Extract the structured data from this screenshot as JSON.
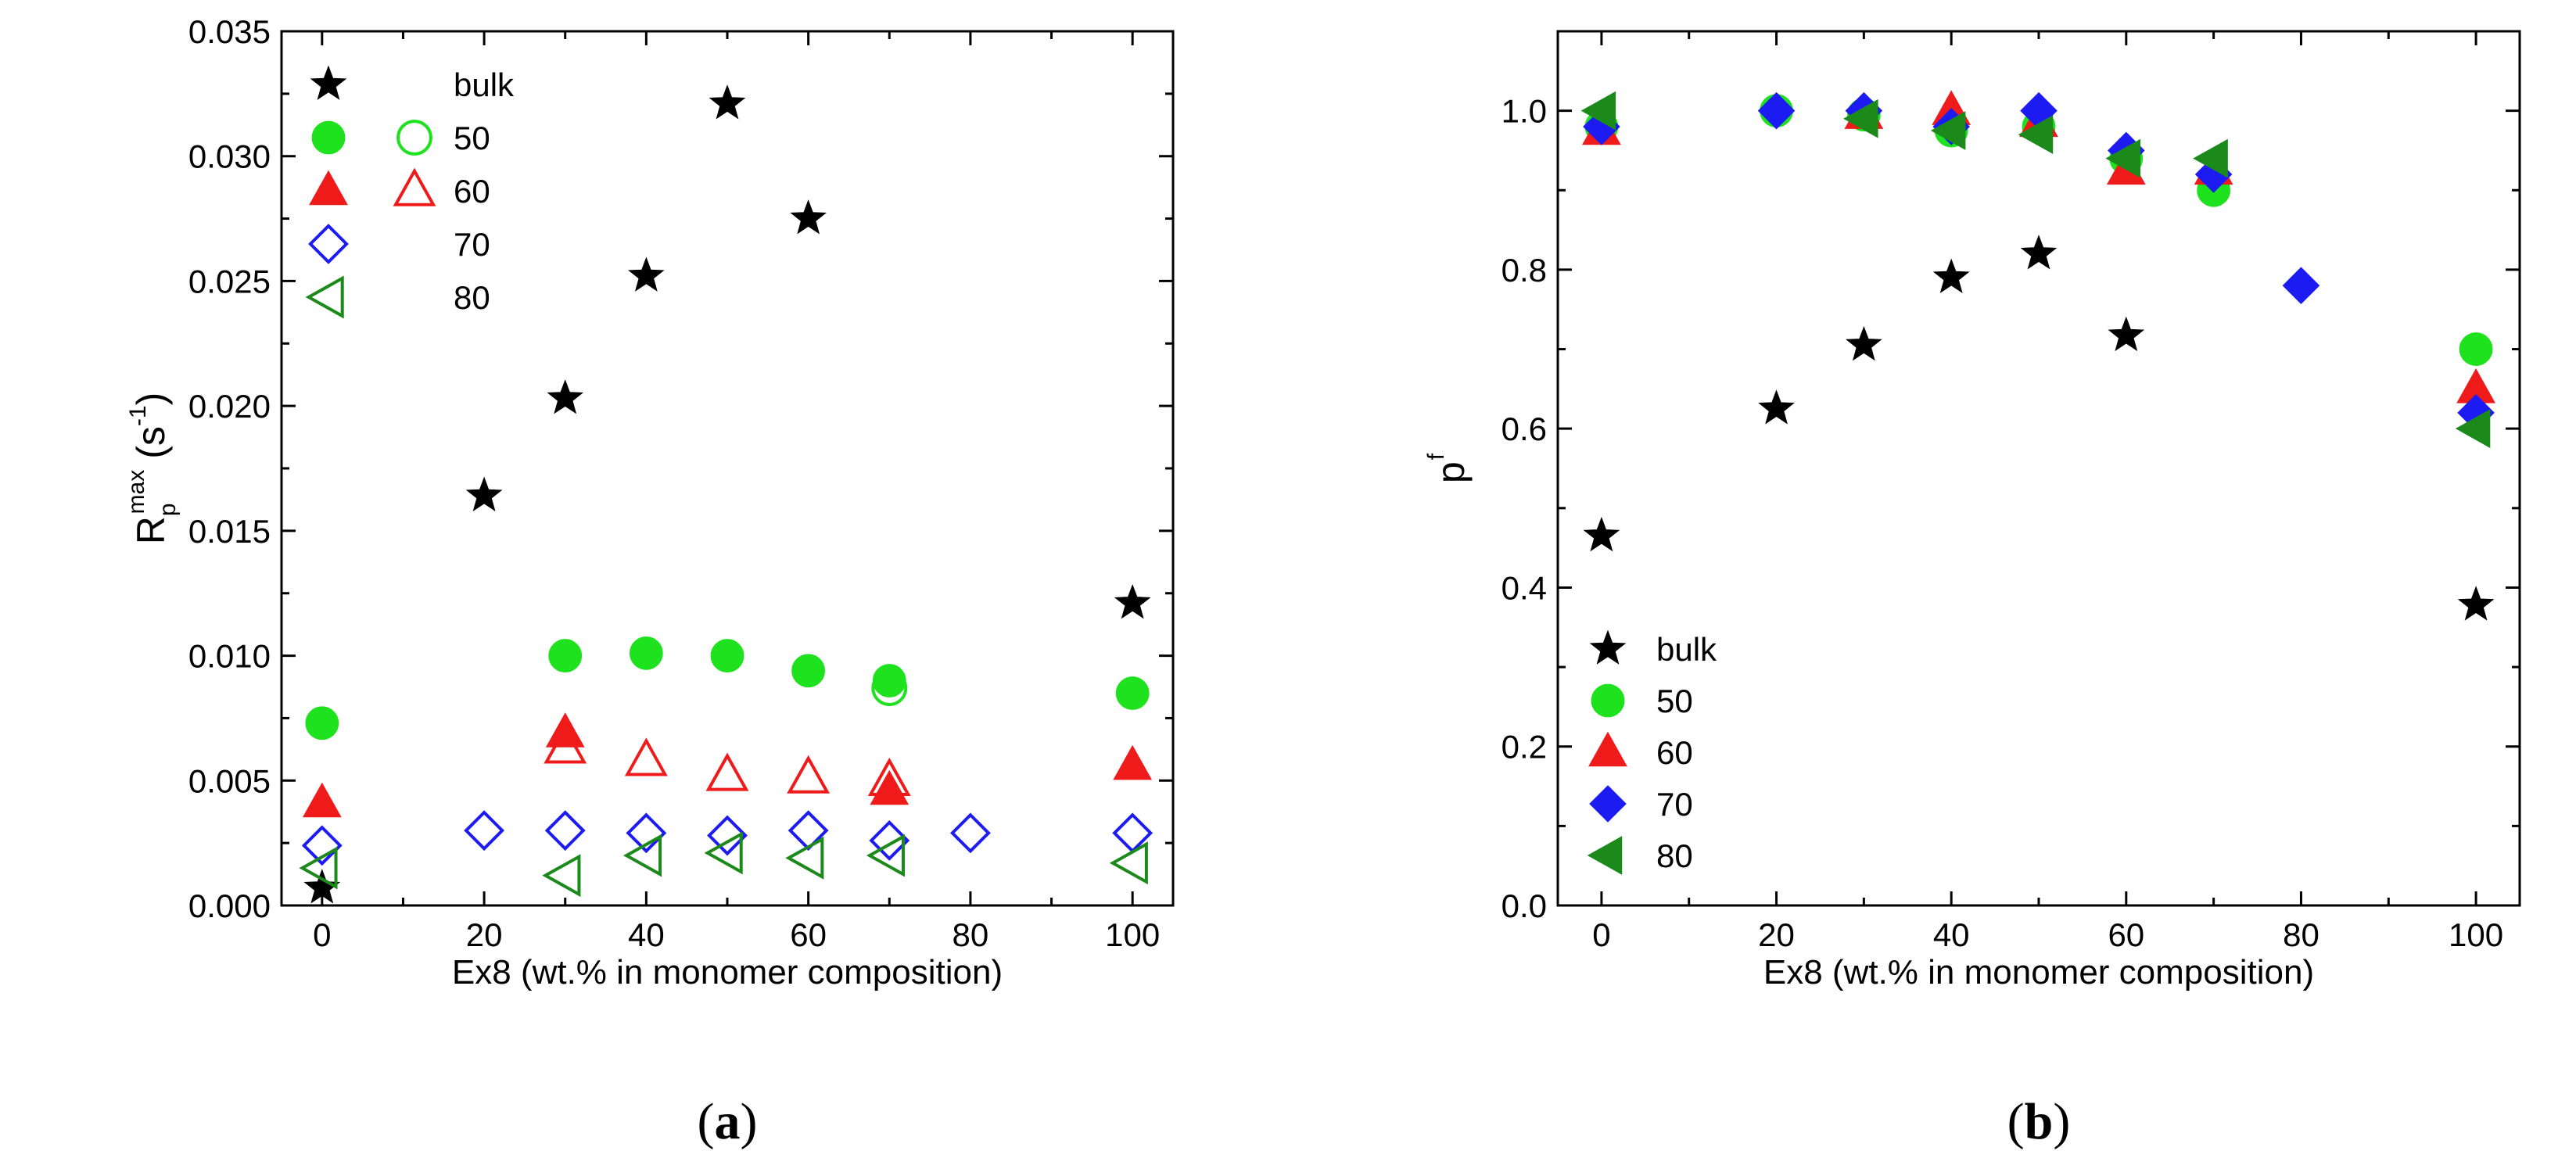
{
  "colors": {
    "bulk": "#000000",
    "50": "#1fe21f",
    "60": "#ef1b1b",
    "70": "#1c1cf2",
    "80": "#1b8a1b",
    "axis": "#000000"
  },
  "chart_data": [
    {
      "id": "a",
      "type": "scatter",
      "panel_label": "a",
      "xlabel": "Ex8 (wt.% in monomer composition)",
      "ylabel": "R",
      "ylabel_sup": "max",
      "ylabel_sub": "p",
      "ylabel_unit_open": "(s",
      "ylabel_unit_sup": "-1",
      "ylabel_unit_close": ")",
      "xlim": [
        -5,
        105
      ],
      "ylim": [
        0,
        0.035
      ],
      "xticks": [
        0,
        20,
        40,
        60,
        80,
        100
      ],
      "xtick_labels": [
        "0",
        "20",
        "40",
        "60",
        "80",
        "100"
      ],
      "yticks": [
        0,
        0.005,
        0.01,
        0.015,
        0.02,
        0.025,
        0.03,
        0.035
      ],
      "ytick_labels": [
        "0.000",
        "0.005",
        "0.010",
        "0.015",
        "0.020",
        "0.025",
        "0.030",
        "0.035"
      ],
      "legend": {
        "position": "top-left",
        "rows": [
          {
            "label": "bulk",
            "markers": [
              {
                "series": "bulk",
                "marker": "star",
                "filled": true
              }
            ]
          },
          {
            "label": "50",
            "markers": [
              {
                "series": "50",
                "marker": "circle",
                "filled": true
              },
              {
                "series": "50",
                "marker": "circle",
                "filled": false
              }
            ]
          },
          {
            "label": "60",
            "markers": [
              {
                "series": "60",
                "marker": "triangle-up",
                "filled": true
              },
              {
                "series": "60",
                "marker": "triangle-up",
                "filled": false
              }
            ]
          },
          {
            "label": "70",
            "markers": [
              {
                "series": "70",
                "marker": "diamond",
                "filled": false
              }
            ]
          },
          {
            "label": "80",
            "markers": [
              {
                "series": "80",
                "marker": "triangle-left",
                "filled": false
              }
            ]
          }
        ]
      },
      "series": [
        {
          "name": "bulk",
          "marker": "star",
          "filled": true,
          "x": [
            0,
            20,
            30,
            40,
            50,
            60,
            100
          ],
          "y": [
            0.0007,
            0.0164,
            0.0203,
            0.0252,
            0.0321,
            0.0275,
            0.0121
          ]
        },
        {
          "name": "50",
          "marker": "circle",
          "filled": true,
          "x": [
            0,
            30,
            40,
            50,
            60,
            70,
            100
          ],
          "y": [
            0.0073,
            0.01,
            0.0101,
            0.01,
            0.0094,
            0.009,
            0.0085
          ]
        },
        {
          "name": "50",
          "marker": "circle",
          "filled": false,
          "x": [
            70
          ],
          "y": [
            0.0087
          ]
        },
        {
          "name": "60",
          "marker": "triangle-up",
          "filled": true,
          "x": [
            0,
            30,
            70,
            100
          ],
          "y": [
            0.0041,
            0.0069,
            0.0046,
            0.0056
          ]
        },
        {
          "name": "60",
          "marker": "triangle-up",
          "filled": false,
          "x": [
            30,
            40,
            50,
            60,
            70
          ],
          "y": [
            0.0063,
            0.0058,
            0.0052,
            0.0051,
            0.005
          ]
        },
        {
          "name": "70",
          "marker": "diamond",
          "filled": false,
          "x": [
            0,
            20,
            30,
            40,
            50,
            60,
            70,
            80,
            100
          ],
          "y": [
            0.0024,
            0.003,
            0.003,
            0.0029,
            0.0028,
            0.003,
            0.0026,
            0.0029,
            0.0029
          ]
        },
        {
          "name": "80",
          "marker": "triangle-left",
          "filled": false,
          "x": [
            0,
            30,
            40,
            50,
            60,
            70,
            100
          ],
          "y": [
            0.0015,
            0.0012,
            0.002,
            0.0021,
            0.0019,
            0.002,
            0.0017
          ]
        }
      ]
    },
    {
      "id": "b",
      "type": "scatter",
      "panel_label": "b",
      "xlabel": "Ex8 (wt.% in monomer composition)",
      "ylabel": "p",
      "ylabel_sup": "f",
      "xlim": [
        -5,
        105
      ],
      "ylim": [
        0,
        1.1
      ],
      "xticks": [
        0,
        20,
        40,
        60,
        80,
        100
      ],
      "xtick_labels": [
        "0",
        "20",
        "40",
        "60",
        "80",
        "100"
      ],
      "yticks": [
        0,
        0.2,
        0.4,
        0.6,
        0.8,
        1.0
      ],
      "ytick_labels": [
        "0.0",
        "0.2",
        "0.4",
        "0.6",
        "0.8",
        "1.0"
      ],
      "legend": {
        "position": "bottom-left",
        "rows": [
          {
            "label": "bulk",
            "markers": [
              {
                "series": "bulk",
                "marker": "star",
                "filled": true
              }
            ]
          },
          {
            "label": "50",
            "markers": [
              {
                "series": "50",
                "marker": "circle",
                "filled": true
              }
            ]
          },
          {
            "label": "60",
            "markers": [
              {
                "series": "60",
                "marker": "triangle-up",
                "filled": true
              }
            ]
          },
          {
            "label": "70",
            "markers": [
              {
                "series": "70",
                "marker": "diamond",
                "filled": true
              }
            ]
          },
          {
            "label": "80",
            "markers": [
              {
                "series": "80",
                "marker": "triangle-left",
                "filled": true
              }
            ]
          }
        ]
      },
      "series": [
        {
          "name": "bulk",
          "marker": "star",
          "filled": true,
          "x": [
            0,
            20,
            30,
            40,
            50,
            60,
            100
          ],
          "y": [
            0.465,
            0.625,
            0.705,
            0.79,
            0.82,
            0.717,
            0.378
          ]
        },
        {
          "name": "50",
          "marker": "circle",
          "filled": true,
          "x": [
            0,
            20,
            30,
            40,
            50,
            60,
            70,
            100
          ],
          "y": [
            0.98,
            1.0,
            0.995,
            0.975,
            0.98,
            0.94,
            0.9,
            0.7
          ]
        },
        {
          "name": "60",
          "marker": "triangle-up",
          "filled": true,
          "x": [
            0,
            30,
            40,
            50,
            60,
            70,
            100
          ],
          "y": [
            0.975,
            0.995,
            1.0,
            0.985,
            0.925,
            0.925,
            0.65
          ]
        },
        {
          "name": "70",
          "marker": "diamond",
          "filled": true,
          "x": [
            0,
            20,
            30,
            40,
            50,
            60,
            70,
            80,
            100
          ],
          "y": [
            0.98,
            1.0,
            1.0,
            0.98,
            1.0,
            0.95,
            0.92,
            0.78,
            0.62
          ]
        },
        {
          "name": "80",
          "marker": "triangle-left",
          "filled": true,
          "x": [
            0,
            30,
            40,
            50,
            60,
            70,
            100
          ],
          "y": [
            1.0,
            0.99,
            0.975,
            0.97,
            0.94,
            0.94,
            0.6
          ]
        }
      ]
    }
  ]
}
